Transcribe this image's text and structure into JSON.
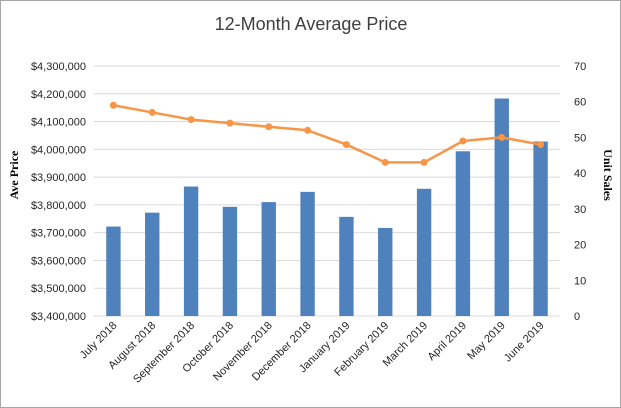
{
  "chart_data": {
    "type": "bar",
    "title": "12-Month Average Price",
    "categories": [
      "July 2018",
      "August 2018",
      "September 2018",
      "October 2018",
      "November 2018",
      "December 2018",
      "January 2019",
      "February 2019",
      "March 2019",
      "April 2019",
      "May 2019",
      "June 2019"
    ],
    "series": [
      {
        "type": "bar",
        "axis": "left",
        "values": [
          3722000,
          3772000,
          3866000,
          3793000,
          3810000,
          3847000,
          3757000,
          3717000,
          3858000,
          3993000,
          4183000,
          4028000
        ]
      },
      {
        "type": "line",
        "axis": "right",
        "values": [
          59,
          57,
          55,
          54,
          53,
          52,
          48,
          43,
          43,
          49,
          50,
          48
        ]
      }
    ],
    "ylabel": "Ave Price",
    "ylabel_right": "Unit Sales",
    "ylim": [
      3400000,
      4300000
    ],
    "ylim_right": [
      0,
      70
    ],
    "yticks": [
      "$3,400,000",
      "$3,500,000",
      "$3,600,000",
      "$3,700,000",
      "$3,800,000",
      "$3,900,000",
      "$4,000,000",
      "$4,100,000",
      "$4,200,000",
      "$4,300,000"
    ],
    "yticks_right": [
      "0",
      "10",
      "20",
      "30",
      "40",
      "50",
      "60",
      "70"
    ],
    "grid": true,
    "legend": "none",
    "colors": {
      "bar": "#4f81bd",
      "line": "#f79646",
      "grid": "#d9d9d9"
    }
  }
}
